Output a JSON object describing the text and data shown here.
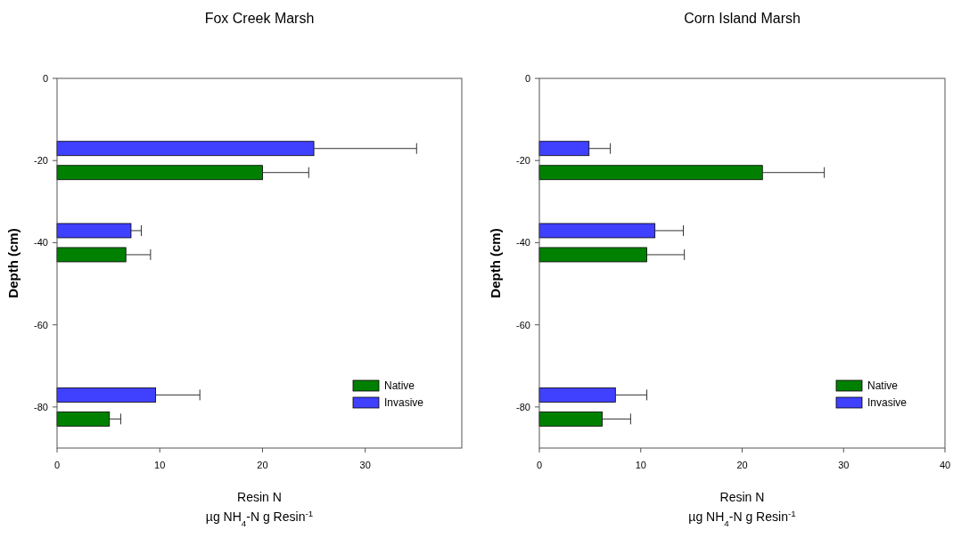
{
  "chart_data": [
    {
      "type": "bar",
      "orientation": "horizontal",
      "title": "Fox Creek Marsh",
      "xlabel": "Resin N\nµg NH$_{4}$-N g Resin$^{-1}$",
      "ylabel": "Depth (cm)",
      "x": [
        -20,
        -40,
        -80
      ],
      "xlim": [
        0,
        39.4
      ],
      "xticks": [
        0,
        10,
        20,
        30
      ],
      "ylim": [
        -90,
        0
      ],
      "yticks": [
        0,
        -20,
        -40,
        -60,
        -80
      ],
      "legend": "bottom right",
      "grid": false,
      "series": [
        {
          "name": "Native",
          "color": "#008000",
          "values": [
            20.0,
            6.7,
            5.1
          ],
          "errors": [
            4.5,
            2.4,
            1.1
          ]
        },
        {
          "name": "Invasive",
          "color": "#4040ff",
          "values": [
            25.0,
            7.2,
            9.6
          ],
          "errors": [
            10.0,
            1.0,
            4.3
          ]
        }
      ]
    },
    {
      "type": "bar",
      "orientation": "horizontal",
      "title": "Corn Island Marsh",
      "xlabel": "Resin N\nµg NH$_{4}$-N g Resin$^{-1}$",
      "ylabel": "Depth (cm)",
      "x": [
        -20,
        -40,
        -80
      ],
      "xlim": [
        0,
        40
      ],
      "xticks": [
        0,
        10,
        20,
        30,
        40
      ],
      "ylim": [
        -90,
        0
      ],
      "yticks": [
        0,
        -20,
        -40,
        -60,
        -80
      ],
      "legend": "bottom right",
      "grid": false,
      "series": [
        {
          "name": "Native",
          "color": "#008000",
          "values": [
            22.0,
            10.6,
            6.2
          ],
          "errors": [
            6.1,
            3.7,
            2.8
          ]
        },
        {
          "name": "Invasive",
          "color": "#4040ff",
          "values": [
            4.9,
            11.4,
            7.5
          ],
          "errors": [
            2.1,
            2.8,
            3.1
          ]
        }
      ]
    }
  ]
}
